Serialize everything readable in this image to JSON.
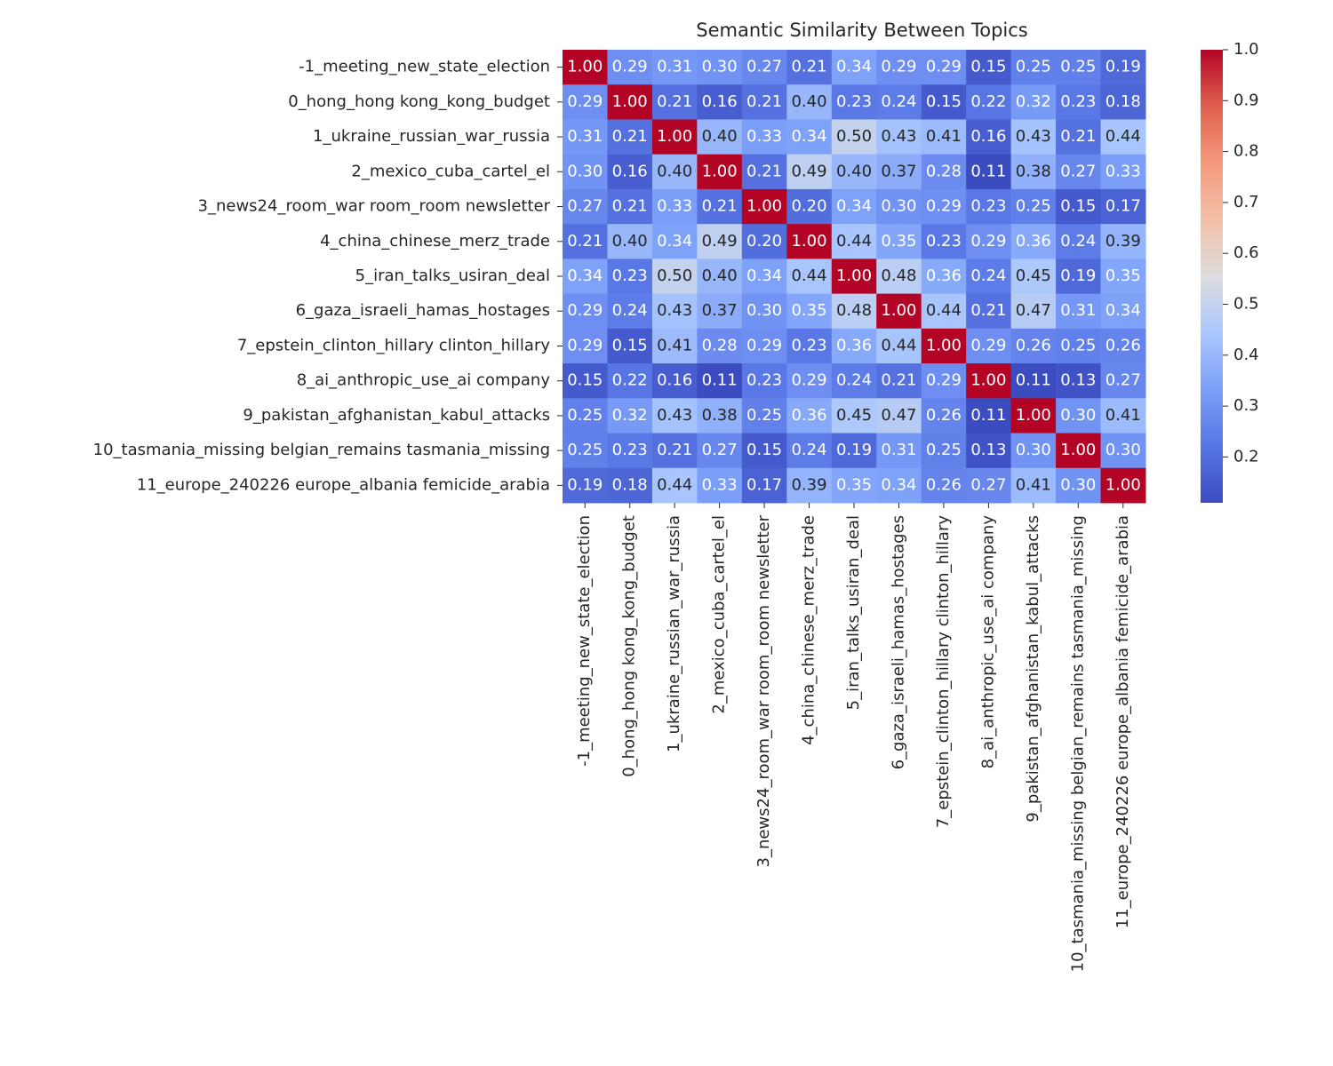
{
  "chart_data": {
    "type": "heatmap",
    "title": "Semantic Similarity Between Topics",
    "categories": [
      "-1_meeting_new_state_election",
      "0_hong_hong kong_kong_budget",
      "1_ukraine_russian_war_russia",
      "2_mexico_cuba_cartel_el",
      "3_news24_room_war room_room newsletter",
      "4_china_chinese_merz_trade",
      "5_iran_talks_usiran_deal",
      "6_gaza_israeli_hamas_hostages",
      "7_epstein_clinton_hillary clinton_hillary",
      "8_ai_anthropic_use_ai company",
      "9_pakistan_afghanistan_kabul_attacks",
      "10_tasmania_missing belgian_remains tasmania_missing",
      "11_europe_240226 europe_albania femicide_arabia"
    ],
    "values": [
      [
        1,
        0.29,
        0.31,
        0.3,
        0.27,
        0.21,
        0.34,
        0.29,
        0.29,
        0.15,
        0.25,
        0.25,
        0.19
      ],
      [
        0.29,
        1,
        0.21,
        0.16,
        0.21,
        0.4,
        0.23,
        0.24,
        0.15,
        0.22,
        0.32,
        0.23,
        0.18
      ],
      [
        0.31,
        0.21,
        1,
        0.4,
        0.33,
        0.34,
        0.5,
        0.43,
        0.41,
        0.16,
        0.43,
        0.21,
        0.44
      ],
      [
        0.3,
        0.16,
        0.4,
        1,
        0.21,
        0.49,
        0.4,
        0.37,
        0.28,
        0.11,
        0.38,
        0.27,
        0.33
      ],
      [
        0.27,
        0.21,
        0.33,
        0.21,
        1,
        0.2,
        0.34,
        0.3,
        0.29,
        0.23,
        0.25,
        0.15,
        0.17
      ],
      [
        0.21,
        0.4,
        0.34,
        0.49,
        0.2,
        1,
        0.44,
        0.35,
        0.23,
        0.29,
        0.36,
        0.24,
        0.39
      ],
      [
        0.34,
        0.23,
        0.5,
        0.4,
        0.34,
        0.44,
        1,
        0.48,
        0.36,
        0.24,
        0.45,
        0.19,
        0.35
      ],
      [
        0.29,
        0.24,
        0.43,
        0.37,
        0.3,
        0.35,
        0.48,
        1,
        0.44,
        0.21,
        0.47,
        0.31,
        0.34
      ],
      [
        0.29,
        0.15,
        0.41,
        0.28,
        0.29,
        0.23,
        0.36,
        0.44,
        1,
        0.29,
        0.26,
        0.25,
        0.26
      ],
      [
        0.15,
        0.22,
        0.16,
        0.11,
        0.23,
        0.29,
        0.24,
        0.21,
        0.29,
        1,
        0.11,
        0.13,
        0.27
      ],
      [
        0.25,
        0.32,
        0.43,
        0.38,
        0.25,
        0.36,
        0.45,
        0.47,
        0.26,
        0.11,
        1,
        0.3,
        0.41
      ],
      [
        0.25,
        0.23,
        0.21,
        0.27,
        0.15,
        0.24,
        0.19,
        0.31,
        0.25,
        0.13,
        0.3,
        1,
        0.3
      ],
      [
        0.19,
        0.18,
        0.44,
        0.33,
        0.17,
        0.39,
        0.35,
        0.34,
        0.26,
        0.27,
        0.41,
        0.3,
        1
      ]
    ],
    "value_labels": [
      [
        "1.00",
        "0.29",
        "0.31",
        "0.30",
        "0.27",
        "0.21",
        "0.34",
        "0.29",
        "0.29",
        "0.15",
        "0.25",
        "0.25",
        "0.19"
      ],
      [
        "0.29",
        "1.00",
        "0.21",
        "0.16",
        "0.21",
        "0.40",
        "0.23",
        "0.24",
        "0.15",
        "0.22",
        "0.32",
        "0.23",
        "0.18"
      ],
      [
        "0.31",
        "0.21",
        "1.00",
        "0.40",
        "0.33",
        "0.34",
        "0.50",
        "0.43",
        "0.41",
        "0.16",
        "0.43",
        "0.21",
        "0.44"
      ],
      [
        "0.30",
        "0.16",
        "0.40",
        "1.00",
        "0.21",
        "0.49",
        "0.40",
        "0.37",
        "0.28",
        "0.11",
        "0.38",
        "0.27",
        "0.33"
      ],
      [
        "0.27",
        "0.21",
        "0.33",
        "0.21",
        "1.00",
        "0.20",
        "0.34",
        "0.30",
        "0.29",
        "0.23",
        "0.25",
        "0.15",
        "0.17"
      ],
      [
        "0.21",
        "0.40",
        "0.34",
        "0.49",
        "0.20",
        "1.00",
        "0.44",
        "0.35",
        "0.23",
        "0.29",
        "0.36",
        "0.24",
        "0.39"
      ],
      [
        "0.34",
        "0.23",
        "0.50",
        "0.40",
        "0.34",
        "0.44",
        "1.00",
        "0.48",
        "0.36",
        "0.24",
        "0.45",
        "0.19",
        "0.35"
      ],
      [
        "0.29",
        "0.24",
        "0.43",
        "0.37",
        "0.30",
        "0.35",
        "0.48",
        "1.00",
        "0.44",
        "0.21",
        "0.47",
        "0.31",
        "0.34"
      ],
      [
        "0.29",
        "0.15",
        "0.41",
        "0.28",
        "0.29",
        "0.23",
        "0.36",
        "0.44",
        "1.00",
        "0.29",
        "0.26",
        "0.25",
        "0.26"
      ],
      [
        "0.15",
        "0.22",
        "0.16",
        "0.11",
        "0.23",
        "0.29",
        "0.24",
        "0.21",
        "0.29",
        "1.00",
        "0.11",
        "0.13",
        "0.27"
      ],
      [
        "0.25",
        "0.32",
        "0.43",
        "0.38",
        "0.25",
        "0.36",
        "0.45",
        "0.47",
        "0.26",
        "0.11",
        "1.00",
        "0.30",
        "0.41"
      ],
      [
        "0.25",
        "0.23",
        "0.21",
        "0.27",
        "0.15",
        "0.24",
        "0.19",
        "0.31",
        "0.25",
        "0.13",
        "0.30",
        "1.00",
        "0.30"
      ],
      [
        "0.19",
        "0.18",
        "0.44",
        "0.33",
        "0.17",
        "0.39",
        "0.35",
        "0.34",
        "0.26",
        "0.27",
        "0.41",
        "0.30",
        "1.00"
      ]
    ],
    "colormap": "coolwarm",
    "clim": [
      0.11,
      1
    ],
    "cticks": [
      0.2,
      0.3,
      0.4,
      0.5,
      0.6,
      0.7,
      0.8,
      0.9,
      {
        "value": 1,
        "label": "1.0"
      }
    ]
  }
}
